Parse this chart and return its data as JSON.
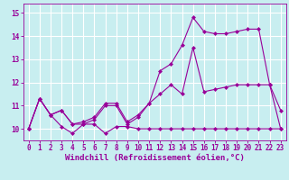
{
  "xlabel": "Windchill (Refroidissement éolien,°C)",
  "background_color": "#c8eef0",
  "grid_color": "#ffffff",
  "line_color": "#990099",
  "xlim": [
    -0.5,
    23.5
  ],
  "ylim": [
    9.5,
    15.4
  ],
  "yticks": [
    10,
    11,
    12,
    13,
    14,
    15
  ],
  "xticks": [
    0,
    1,
    2,
    3,
    4,
    5,
    6,
    7,
    8,
    9,
    10,
    11,
    12,
    13,
    14,
    15,
    16,
    17,
    18,
    19,
    20,
    21,
    22,
    23
  ],
  "series1_y": [
    10.0,
    11.3,
    10.6,
    10.1,
    9.8,
    10.2,
    10.2,
    9.8,
    10.1,
    10.1,
    10.0,
    10.0,
    10.0,
    10.0,
    10.0,
    10.0,
    10.0,
    10.0,
    10.0,
    10.0,
    10.0,
    10.0,
    10.0,
    10.0
  ],
  "series2_y": [
    10.0,
    11.3,
    10.6,
    10.8,
    10.2,
    10.3,
    10.5,
    11.1,
    11.1,
    10.3,
    10.6,
    11.1,
    11.5,
    11.9,
    11.5,
    13.5,
    11.6,
    11.7,
    11.8,
    11.9,
    11.9,
    11.9,
    11.9,
    10.0
  ],
  "series3_y": [
    10.0,
    11.3,
    10.6,
    10.8,
    10.2,
    10.2,
    10.4,
    11.0,
    11.0,
    10.2,
    10.5,
    11.1,
    12.5,
    12.8,
    13.6,
    14.8,
    14.2,
    14.1,
    14.1,
    14.2,
    14.3,
    14.3,
    11.9,
    10.8
  ],
  "font_size_label": 6.5,
  "font_size_tick": 5.5,
  "marker": "D",
  "marker_size": 2.0,
  "linewidth": 0.8
}
